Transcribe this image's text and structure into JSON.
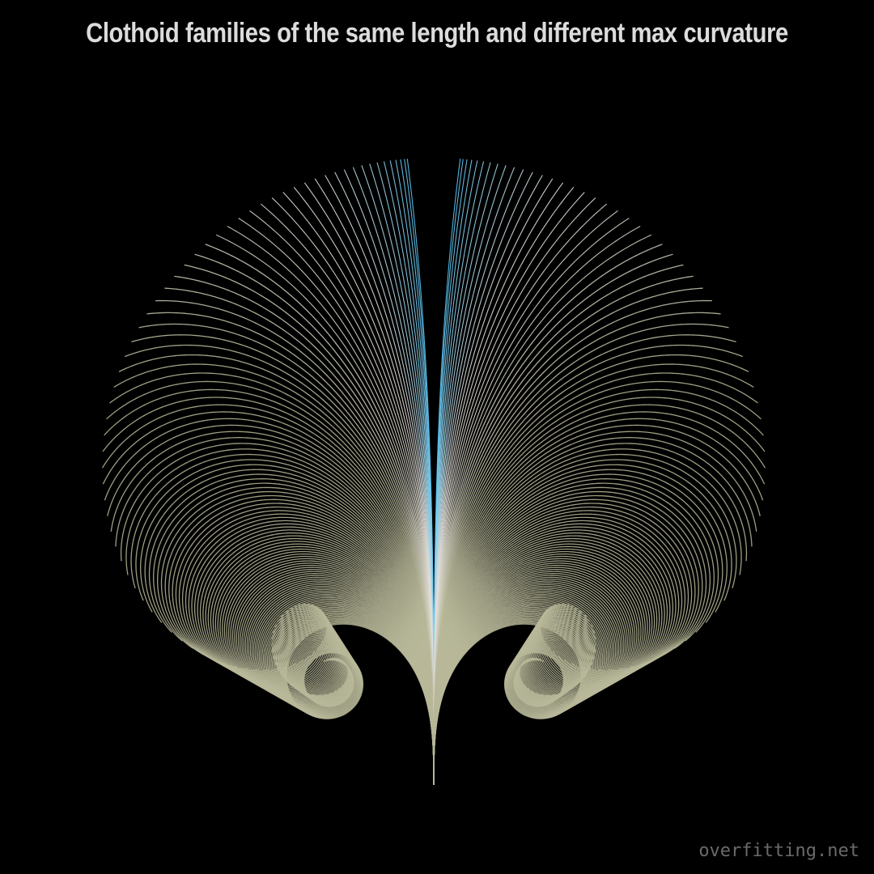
{
  "title": "Clothoid families of the same length and different max curvature",
  "watermark": "overfitting.net",
  "colors": {
    "background": "#000000",
    "title": "#dcdcdc",
    "curve_low_curvature": "#4fc3f7",
    "curve_mid_curvature": "#e6e2dc",
    "curve_high_curvature": "#b9b99a",
    "watermark": "#6a6a6a"
  },
  "chart_data": {
    "type": "line",
    "description_of_families": "mirrored",
    "families": [
      {
        "direction": "left"
      },
      {
        "direction": "right"
      }
    ],
    "curve_count_per_family": 120,
    "max_total_turning_radians": 14.5
  }
}
